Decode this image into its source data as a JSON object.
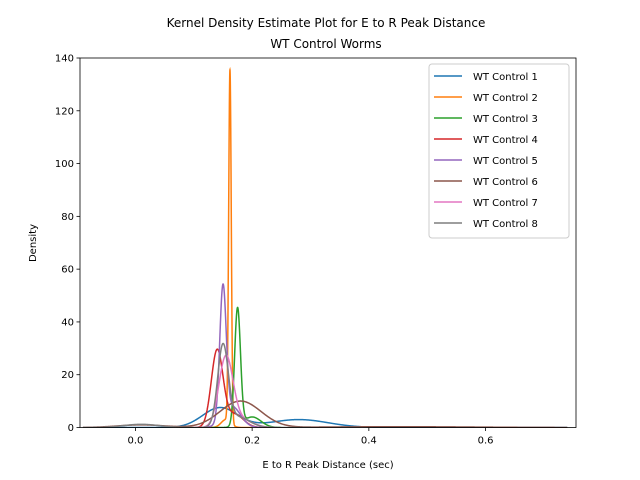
{
  "chart_data": {
    "type": "line",
    "title_line1": "Kernel Density Estimate Plot for E to R Peak Distance",
    "title_line2": "WT Control Worms",
    "xlabel": "E to R Peak Distance (sec)",
    "ylabel": "Density",
    "xlim": [
      -0.095,
      0.755
    ],
    "ylim": [
      0,
      140
    ],
    "xticks": [
      0.0,
      0.2,
      0.4,
      0.6
    ],
    "xtick_labels": [
      "0.0",
      "0.2",
      "0.4",
      "0.6"
    ],
    "yticks": [
      0,
      20,
      40,
      60,
      80,
      100,
      120,
      140
    ],
    "ytick_labels": [
      "0",
      "20",
      "40",
      "60",
      "80",
      "100",
      "120",
      "140"
    ],
    "legend_position": "top-right",
    "series": [
      {
        "name": "WT Control 1",
        "color": "#1f77b4",
        "x_range": [
          -0.085,
          0.74
        ],
        "components": [
          {
            "mu": 0.145,
            "sigma": 0.03,
            "peak": 7.5
          },
          {
            "mu": 0.28,
            "sigma": 0.05,
            "peak": 3.0
          }
        ]
      },
      {
        "name": "WT Control 2",
        "color": "#ff7f0e",
        "x_range": [
          0.12,
          0.2
        ],
        "components": [
          {
            "mu": 0.162,
            "sigma": 0.0022,
            "peak": 133.5
          },
          {
            "mu": 0.155,
            "sigma": 0.008,
            "peak": 3
          }
        ]
      },
      {
        "name": "WT Control 3",
        "color": "#2ca02c",
        "x_range": [
          0.13,
          0.25
        ],
        "components": [
          {
            "mu": 0.175,
            "sigma": 0.005,
            "peak": 44.5
          },
          {
            "mu": 0.2,
            "sigma": 0.015,
            "peak": 4
          }
        ]
      },
      {
        "name": "WT Control 4",
        "color": "#d62728",
        "x_range": [
          0.08,
          0.23
        ],
        "components": [
          {
            "mu": 0.14,
            "sigma": 0.01,
            "peak": 29
          },
          {
            "mu": 0.17,
            "sigma": 0.015,
            "peak": 5
          }
        ]
      },
      {
        "name": "WT Control 5",
        "color": "#9467bd",
        "x_range": [
          0.11,
          0.22
        ],
        "components": [
          {
            "mu": 0.15,
            "sigma": 0.0055,
            "peak": 49.5
          },
          {
            "mu": 0.165,
            "sigma": 0.015,
            "peak": 8
          }
        ]
      },
      {
        "name": "WT Control 6",
        "color": "#8c564b",
        "x_range": [
          -0.09,
          0.74
        ],
        "components": [
          {
            "mu": 0.01,
            "sigma": 0.04,
            "peak": 1.0
          },
          {
            "mu": 0.18,
            "sigma": 0.035,
            "peak": 10
          },
          {
            "mu": 0.45,
            "sigma": 0.12,
            "peak": 0.3
          }
        ]
      },
      {
        "name": "WT Control 7",
        "color": "#e377c2",
        "x_range": [
          0.1,
          0.24
        ],
        "components": [
          {
            "mu": 0.155,
            "sigma": 0.012,
            "peak": 26
          },
          {
            "mu": 0.18,
            "sigma": 0.02,
            "peak": 3
          }
        ]
      },
      {
        "name": "WT Control 8",
        "color": "#7f7f7f",
        "x_range": [
          -0.09,
          0.3
        ],
        "components": [
          {
            "mu": 0.01,
            "sigma": 0.03,
            "peak": 1.2
          },
          {
            "mu": 0.15,
            "sigma": 0.009,
            "peak": 30
          },
          {
            "mu": 0.175,
            "sigma": 0.02,
            "peak": 4
          }
        ]
      }
    ]
  }
}
